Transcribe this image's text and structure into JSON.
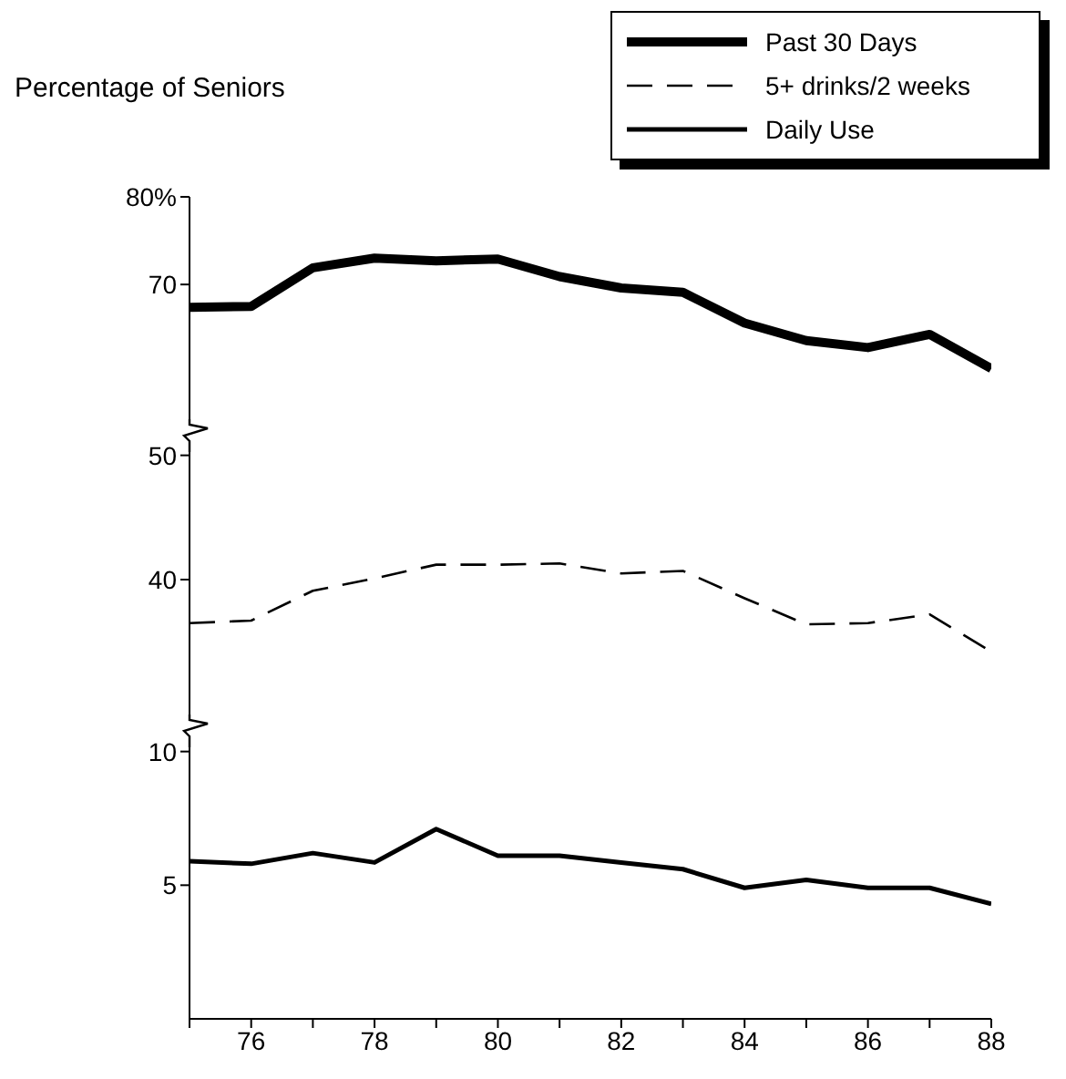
{
  "chart_data": [
    {
      "type": "line",
      "ylabel": "Percentage of Seniors",
      "x": [
        75,
        76,
        77,
        78,
        79,
        80,
        81,
        82,
        83,
        84,
        85,
        86,
        87,
        88
      ],
      "xlim": [
        75,
        88
      ],
      "ylim": [
        54,
        80
      ],
      "yticks": [
        {
          "value": 80,
          "label": "80%"
        },
        70
      ],
      "tick_labels": "y",
      "legend": "top right",
      "line_style": "solid",
      "marker": "none",
      "series": [
        {
          "name": "Past 30 Days",
          "color": "#000000",
          "values": [
            67.4,
            67.5,
            71.9,
            73.0,
            72.7,
            72.9,
            70.9,
            69.6,
            69.1,
            65.6,
            63.6,
            62.8,
            64.3,
            60.4
          ]
        }
      ]
    },
    {
      "type": "line",
      "x": [
        75,
        76,
        77,
        78,
        79,
        80,
        81,
        82,
        83,
        84,
        85,
        86,
        87,
        88
      ],
      "xlim": [
        75,
        88
      ],
      "ylim": [
        29,
        51
      ],
      "yticks": [
        50,
        40
      ],
      "tick_labels": "y",
      "line_style": "dashed",
      "marker": "none",
      "series": [
        {
          "name": "5+ drinks/2 weeks",
          "color": "#000000",
          "values": [
            36.5,
            36.7,
            39.1,
            40.1,
            41.2,
            41.2,
            41.3,
            40.5,
            40.7,
            38.5,
            36.4,
            36.5,
            37.2,
            34.2
          ]
        }
      ]
    },
    {
      "type": "line",
      "x": [
        75,
        76,
        77,
        78,
        79,
        80,
        81,
        82,
        83,
        84,
        85,
        86,
        87,
        88
      ],
      "xlim": [
        75,
        88
      ],
      "ylim": [
        0,
        10.5
      ],
      "yticks": [
        10,
        5
      ],
      "xticks": [
        {
          "value": 75,
          "label": null
        },
        76,
        {
          "value": 77,
          "label": null
        },
        78,
        {
          "value": 79,
          "label": null
        },
        80,
        {
          "value": 81,
          "label": null
        },
        82,
        {
          "value": 83,
          "label": null
        },
        84,
        {
          "value": 85,
          "label": null
        },
        86,
        {
          "value": 87,
          "label": null
        },
        88
      ],
      "line_style": "solid",
      "marker": "none",
      "series": [
        {
          "name": "Daily Use",
          "color": "#000000",
          "values": [
            5.9,
            5.8,
            6.2,
            5.85,
            7.1,
            6.1,
            6.1,
            5.85,
            5.6,
            4.9,
            5.2,
            4.9,
            4.9,
            4.3
          ]
        }
      ]
    }
  ]
}
